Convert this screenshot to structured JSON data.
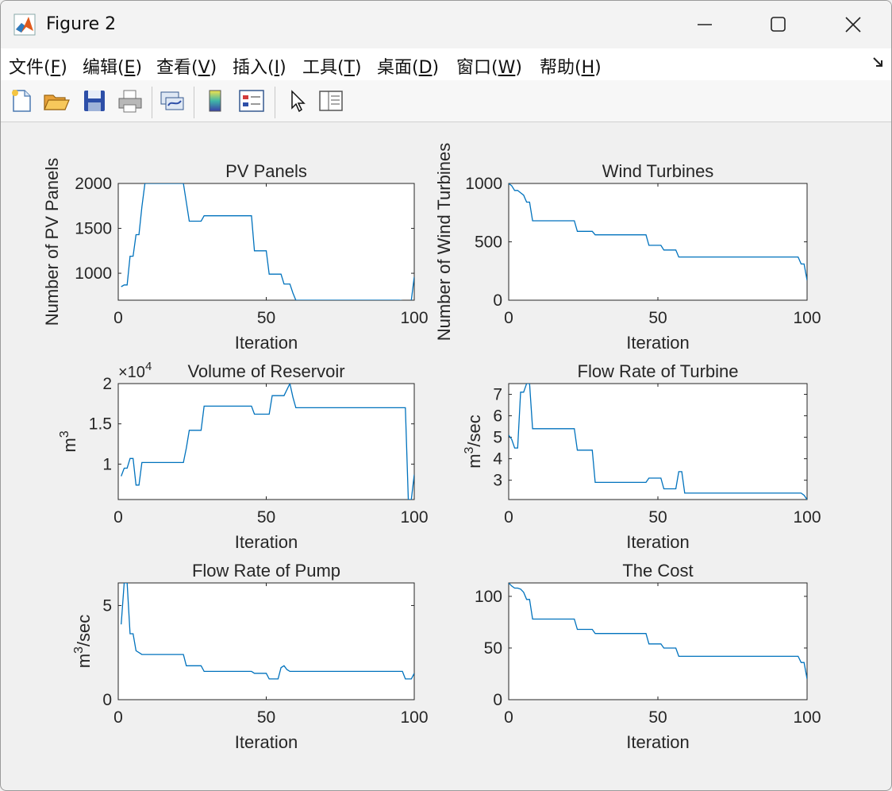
{
  "window": {
    "title": "Figure 2"
  },
  "menu": [
    {
      "label": "文件(",
      "mnemonic": "F",
      "close": ")"
    },
    {
      "label": "编辑(",
      "mnemonic": "E",
      "close": ")"
    },
    {
      "label": "查看(",
      "mnemonic": "V",
      "close": ")"
    },
    {
      "label": "插入(",
      "mnemonic": "I",
      "close": ")"
    },
    {
      "label": "工具(",
      "mnemonic": "T",
      "close": ")"
    },
    {
      "label": "桌面(",
      "mnemonic": "D",
      "close": ")"
    },
    {
      "label": "窗口(",
      "mnemonic": "W",
      "close": ")"
    },
    {
      "label": "帮助(",
      "mnemonic": "H",
      "close": ")"
    }
  ],
  "toolbar": [
    "new-figure-icon",
    "open-file-icon",
    "save-icon",
    "print-icon",
    "link-icon",
    "colorbar-icon",
    "legend-icon",
    "pointer-icon",
    "property-inspector-icon"
  ],
  "colors": {
    "line": "#0072bd",
    "axes_bg": "#ffffff",
    "figure_bg": "#f0f0f0"
  },
  "chart_data": [
    {
      "type": "line",
      "title": "PV Panels",
      "xlabel": "Iteration",
      "ylabel": "Number of PV Panels",
      "xlim": [
        0,
        100
      ],
      "ylim": [
        700,
        2000
      ],
      "xticks": [
        "0",
        "50",
        "100"
      ],
      "yticks": [
        "1000",
        "1500",
        "2000"
      ],
      "ytick_values": [
        1000,
        1500,
        2000
      ],
      "exponent": "",
      "series": [
        {
          "x": [
            1,
            2,
            3,
            4,
            5,
            6,
            7,
            8,
            9,
            22,
            23,
            24,
            28,
            29,
            45,
            46,
            50,
            51,
            55,
            56,
            58,
            59,
            60,
            95,
            97,
            98,
            99,
            100
          ],
          "y": [
            850,
            870,
            870,
            1190,
            1190,
            1430,
            1430,
            1740,
            2000,
            2000,
            1790,
            1580,
            1580,
            1640,
            1640,
            1250,
            1250,
            990,
            990,
            880,
            880,
            780,
            700,
            700,
            690,
            560,
            700,
            960
          ]
        }
      ]
    },
    {
      "type": "line",
      "title": "Wind Turbines",
      "xlabel": "Iteration",
      "ylabel": "Number of Wind Turbines",
      "xlim": [
        0,
        100
      ],
      "ylim": [
        0,
        1000
      ],
      "xticks": [
        "0",
        "50",
        "100"
      ],
      "yticks": [
        "0",
        "500",
        "1000"
      ],
      "ytick_values": [
        0,
        500,
        1000
      ],
      "exponent": "",
      "series": [
        {
          "x": [
            0,
            1,
            2,
            3,
            4,
            5,
            6,
            7,
            8,
            22,
            23,
            28,
            29,
            46,
            47,
            51,
            52,
            56,
            57,
            97,
            98,
            99,
            100
          ],
          "y": [
            1000,
            980,
            940,
            940,
            920,
            900,
            840,
            840,
            680,
            680,
            590,
            590,
            560,
            560,
            470,
            470,
            430,
            430,
            370,
            370,
            310,
            310,
            170
          ]
        }
      ]
    },
    {
      "type": "line",
      "title": "Volume of Reservoir",
      "xlabel": "Iteration",
      "ylabel": "m3",
      "xlim": [
        0,
        100
      ],
      "ylim": [
        5600,
        20000
      ],
      "xticks": [
        "0",
        "50",
        "100"
      ],
      "yticks": [
        "1",
        "1.5",
        "2"
      ],
      "ytick_values": [
        10000,
        15000,
        20000
      ],
      "exponent": "×10",
      "exponent_power": "4",
      "series": [
        {
          "x": [
            1,
            2,
            3,
            4,
            5,
            6,
            7,
            8,
            9,
            22,
            23,
            24,
            28,
            29,
            45,
            46,
            51,
            52,
            55,
            56,
            58,
            59,
            60,
            95,
            97,
            98,
            99,
            100
          ],
          "y": [
            8500,
            9500,
            9500,
            10700,
            10700,
            7400,
            7400,
            10200,
            10200,
            10200,
            12000,
            14200,
            14200,
            17200,
            17200,
            16200,
            16200,
            18500,
            18500,
            18500,
            20000,
            18300,
            17000,
            17000,
            17000,
            5600,
            5600,
            8700
          ]
        }
      ]
    },
    {
      "type": "line",
      "title": "Flow Rate of Turbine",
      "xlabel": "Iteration",
      "ylabel": "m3/sec",
      "xlim": [
        0,
        100
      ],
      "ylim": [
        2.1,
        7.5
      ],
      "xticks": [
        "0",
        "50",
        "100"
      ],
      "yticks": [
        "3",
        "4",
        "5",
        "6",
        "7"
      ],
      "ytick_values": [
        3,
        4,
        5,
        6,
        7
      ],
      "exponent": "",
      "series": [
        {
          "x": [
            0,
            1,
            2,
            3,
            4,
            5,
            6,
            7,
            8,
            22,
            23,
            28,
            29,
            46,
            47,
            51,
            52,
            56,
            57,
            58,
            59,
            60,
            96,
            98,
            99,
            100
          ],
          "y": [
            5.1,
            4.9,
            4.5,
            4.5,
            7.1,
            7.1,
            7.5,
            7.5,
            5.4,
            5.4,
            4.4,
            4.4,
            2.9,
            2.9,
            3.1,
            3.1,
            2.6,
            2.6,
            3.4,
            3.4,
            2.4,
            2.4,
            2.4,
            2.4,
            2.3,
            2.1
          ]
        }
      ]
    },
    {
      "type": "line",
      "title": "Flow Rate of Pump",
      "xlabel": "Iteration",
      "ylabel": "m3/sec",
      "xlim": [
        0,
        100
      ],
      "ylim": [
        0,
        6.2
      ],
      "xticks": [
        "0",
        "50",
        "100"
      ],
      "yticks": [
        "0",
        "5"
      ],
      "ytick_values": [
        0,
        5
      ],
      "exponent": "",
      "series": [
        {
          "x": [
            1,
            2,
            3,
            4,
            5,
            6,
            7,
            8,
            22,
            23,
            28,
            29,
            45,
            46,
            50,
            51,
            54,
            55,
            56,
            57,
            58,
            59,
            96,
            97,
            98,
            99,
            100
          ],
          "y": [
            4.0,
            6.2,
            6.2,
            3.5,
            3.5,
            2.6,
            2.5,
            2.4,
            2.4,
            1.8,
            1.8,
            1.5,
            1.5,
            1.4,
            1.4,
            1.1,
            1.1,
            1.7,
            1.8,
            1.6,
            1.5,
            1.5,
            1.5,
            1.1,
            1.1,
            1.1,
            1.4
          ]
        }
      ]
    },
    {
      "type": "line",
      "title": "The Cost",
      "xlabel": "Iteration",
      "ylabel": "",
      "xlim": [
        0,
        100
      ],
      "ylim": [
        0,
        113
      ],
      "xticks": [
        "0",
        "50",
        "100"
      ],
      "yticks": [
        "0",
        "50",
        "100"
      ],
      "ytick_values": [
        0,
        50,
        100
      ],
      "exponent": "",
      "series": [
        {
          "x": [
            0,
            1,
            2,
            3,
            4,
            5,
            6,
            7,
            8,
            22,
            23,
            28,
            29,
            46,
            47,
            51,
            52,
            56,
            57,
            97,
            98,
            99,
            100
          ],
          "y": [
            113,
            110,
            108,
            108,
            107,
            104,
            97,
            97,
            78,
            78,
            68,
            68,
            64,
            64,
            54,
            54,
            50,
            50,
            42,
            42,
            36,
            36,
            20
          ]
        }
      ]
    }
  ]
}
